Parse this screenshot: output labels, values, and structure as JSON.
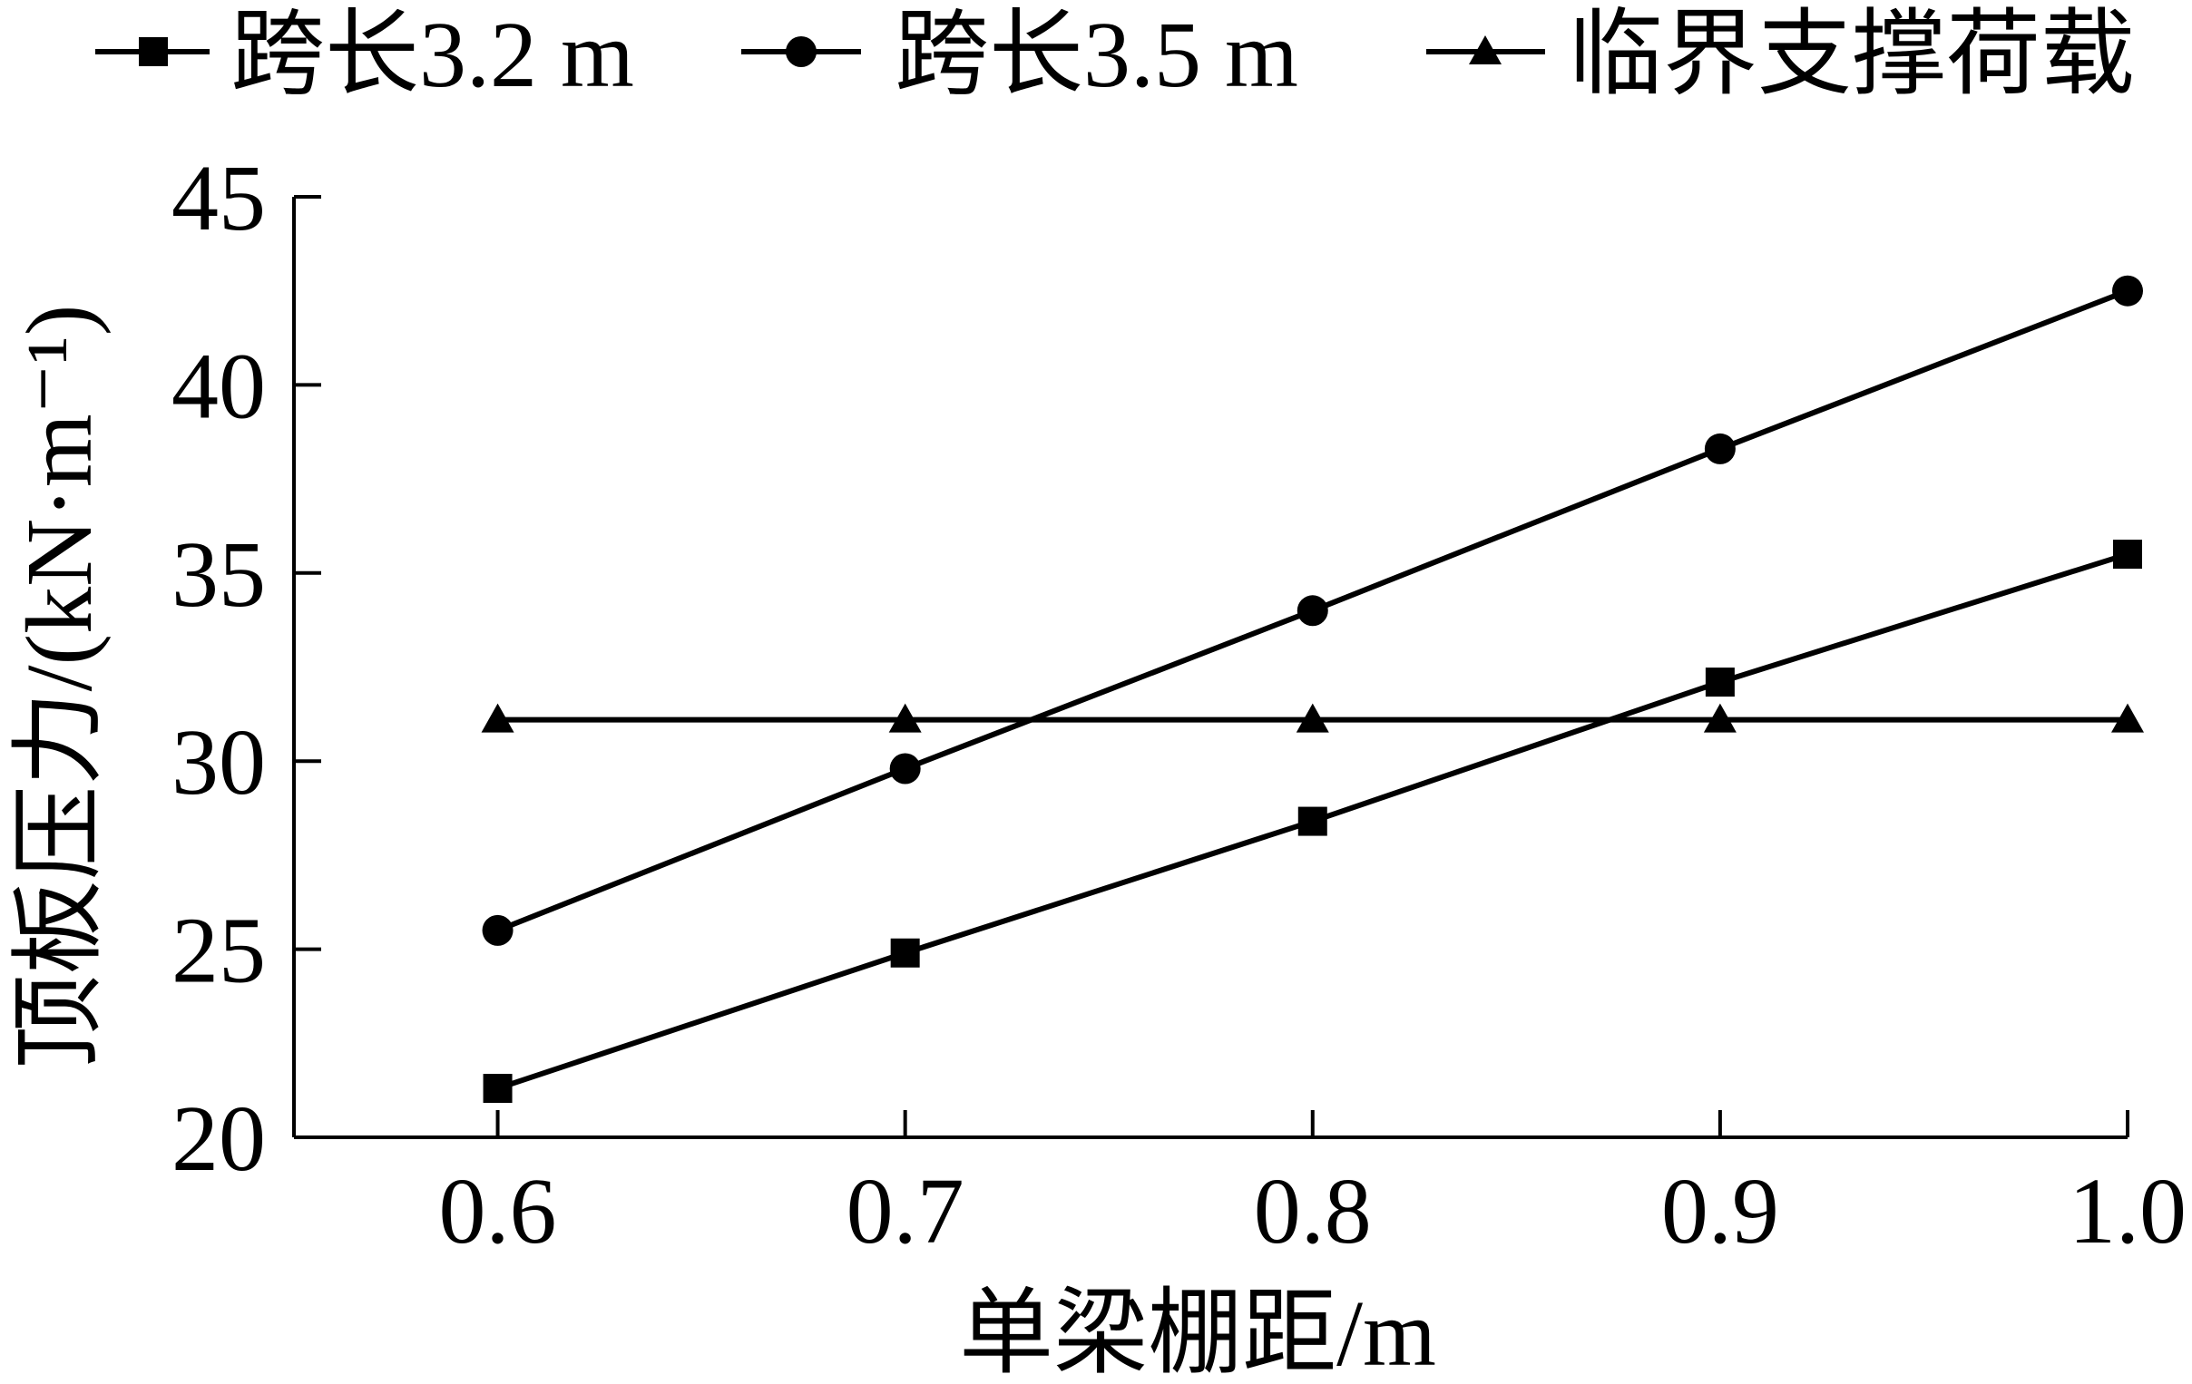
{
  "chart_data": {
    "type": "line",
    "x": [
      0.6,
      0.7,
      0.8,
      0.9,
      1.0
    ],
    "x_tick_labels": [
      "0.6",
      "0.7",
      "0.8",
      "0.9",
      "1.0"
    ],
    "y_ticks": [
      20,
      25,
      30,
      35,
      40,
      45
    ],
    "y_tick_labels": [
      "20",
      "25",
      "30",
      "35",
      "40",
      "45"
    ],
    "xlim": [
      0.55,
      1.0
    ],
    "ylim": [
      20,
      45
    ],
    "xlabel": "单梁棚距/m",
    "ylabel": "顶板压力/(kN·m⁻¹)",
    "grid": false,
    "legend_position": "top",
    "line_color": "#000000",
    "series": [
      {
        "name": "跨长3.2 m",
        "marker": "square",
        "values": [
          21.3,
          24.9,
          28.4,
          32.1,
          35.5
        ]
      },
      {
        "name": "跨长3.5 m",
        "marker": "circle",
        "values": [
          25.5,
          29.8,
          34.0,
          38.3,
          42.5
        ]
      },
      {
        "name": "临界支撑荷载",
        "marker": "triangle",
        "values": [
          31.1,
          31.1,
          31.1,
          31.1,
          31.1
        ]
      }
    ]
  }
}
